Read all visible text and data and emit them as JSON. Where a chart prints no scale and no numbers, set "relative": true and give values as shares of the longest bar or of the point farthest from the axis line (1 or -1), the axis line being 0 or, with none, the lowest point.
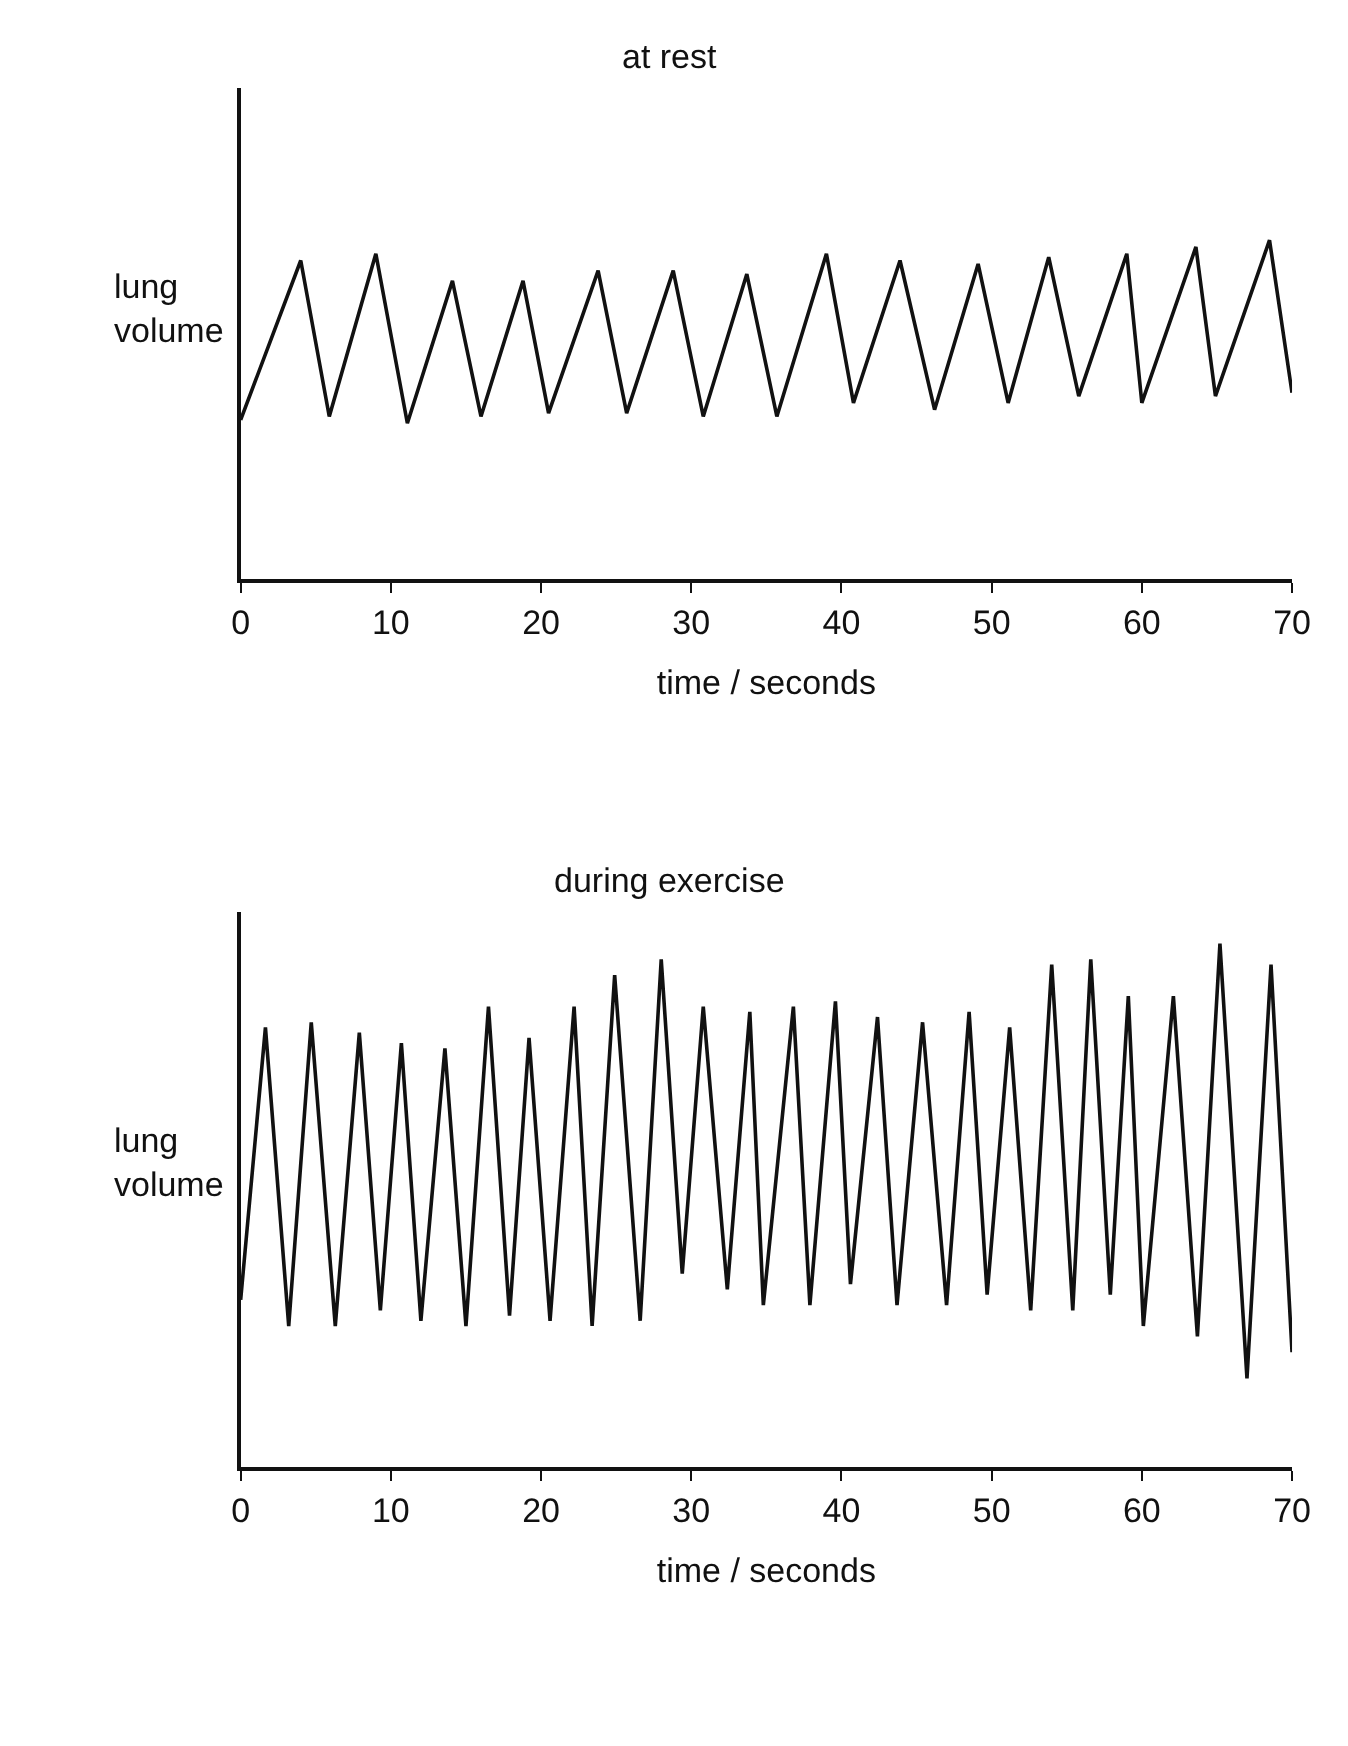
{
  "chart_data": [
    {
      "type": "line",
      "title": "at rest",
      "xlabel": "time / seconds",
      "ylabel": "lung volume",
      "relative": true,
      "xlim": [
        0,
        70
      ],
      "xticks": [
        0,
        10,
        20,
        30,
        40,
        50,
        60,
        70
      ],
      "marker": "none",
      "line_style": "solid",
      "x": [
        0,
        4.0,
        5.9,
        9.0,
        11.1,
        14.1,
        16.0,
        18.8,
        20.5,
        23.8,
        25.7,
        28.8,
        30.8,
        33.7,
        35.7,
        39.0,
        40.8,
        43.9,
        46.2,
        49.1,
        51.1,
        53.8,
        55.8,
        59.0,
        60.0,
        63.6,
        64.9,
        68.5,
        70
      ],
      "series": [
        {
          "color": "#111111",
          "values": [
            0.47,
            0.94,
            0.48,
            0.96,
            0.46,
            0.88,
            0.48,
            0.88,
            0.49,
            0.91,
            0.49,
            0.91,
            0.48,
            0.9,
            0.48,
            0.96,
            0.52,
            0.94,
            0.5,
            0.93,
            0.52,
            0.95,
            0.54,
            0.96,
            0.52,
            0.98,
            0.54,
            1.0,
            0.55
          ]
        }
      ]
    },
    {
      "type": "line",
      "title": "during exercise",
      "xlabel": "time / seconds",
      "ylabel": "lung volume",
      "relative": true,
      "xlim": [
        0,
        70
      ],
      "xticks": [
        0,
        10,
        20,
        30,
        40,
        50,
        60,
        70
      ],
      "marker": "none",
      "line_style": "solid",
      "x": [
        0,
        1.65,
        3.2,
        4.7,
        6.3,
        7.9,
        9.3,
        10.7,
        12.0,
        13.6,
        15.0,
        16.5,
        17.9,
        19.2,
        20.6,
        22.2,
        23.4,
        24.9,
        26.6,
        28.0,
        29.4,
        30.8,
        32.4,
        33.9,
        34.8,
        36.8,
        37.9,
        39.6,
        40.6,
        42.4,
        43.7,
        45.4,
        47.0,
        48.5,
        49.7,
        51.2,
        52.6,
        54.0,
        55.4,
        56.6,
        57.9,
        59.1,
        60.1,
        62.1,
        63.7,
        65.2,
        67.0,
        68.6,
        70
      ],
      "series": [
        {
          "color": "#111111",
          "values": [
            0.32,
            0.84,
            0.27,
            0.85,
            0.27,
            0.83,
            0.3,
            0.81,
            0.28,
            0.8,
            0.27,
            0.88,
            0.29,
            0.82,
            0.28,
            0.88,
            0.27,
            0.94,
            0.28,
            0.97,
            0.37,
            0.88,
            0.34,
            0.87,
            0.31,
            0.88,
            0.31,
            0.89,
            0.35,
            0.86,
            0.31,
            0.85,
            0.31,
            0.87,
            0.33,
            0.84,
            0.3,
            0.96,
            0.3,
            0.97,
            0.33,
            0.9,
            0.27,
            0.9,
            0.25,
            1.0,
            0.17,
            0.96,
            0.22
          ]
        }
      ]
    }
  ]
}
